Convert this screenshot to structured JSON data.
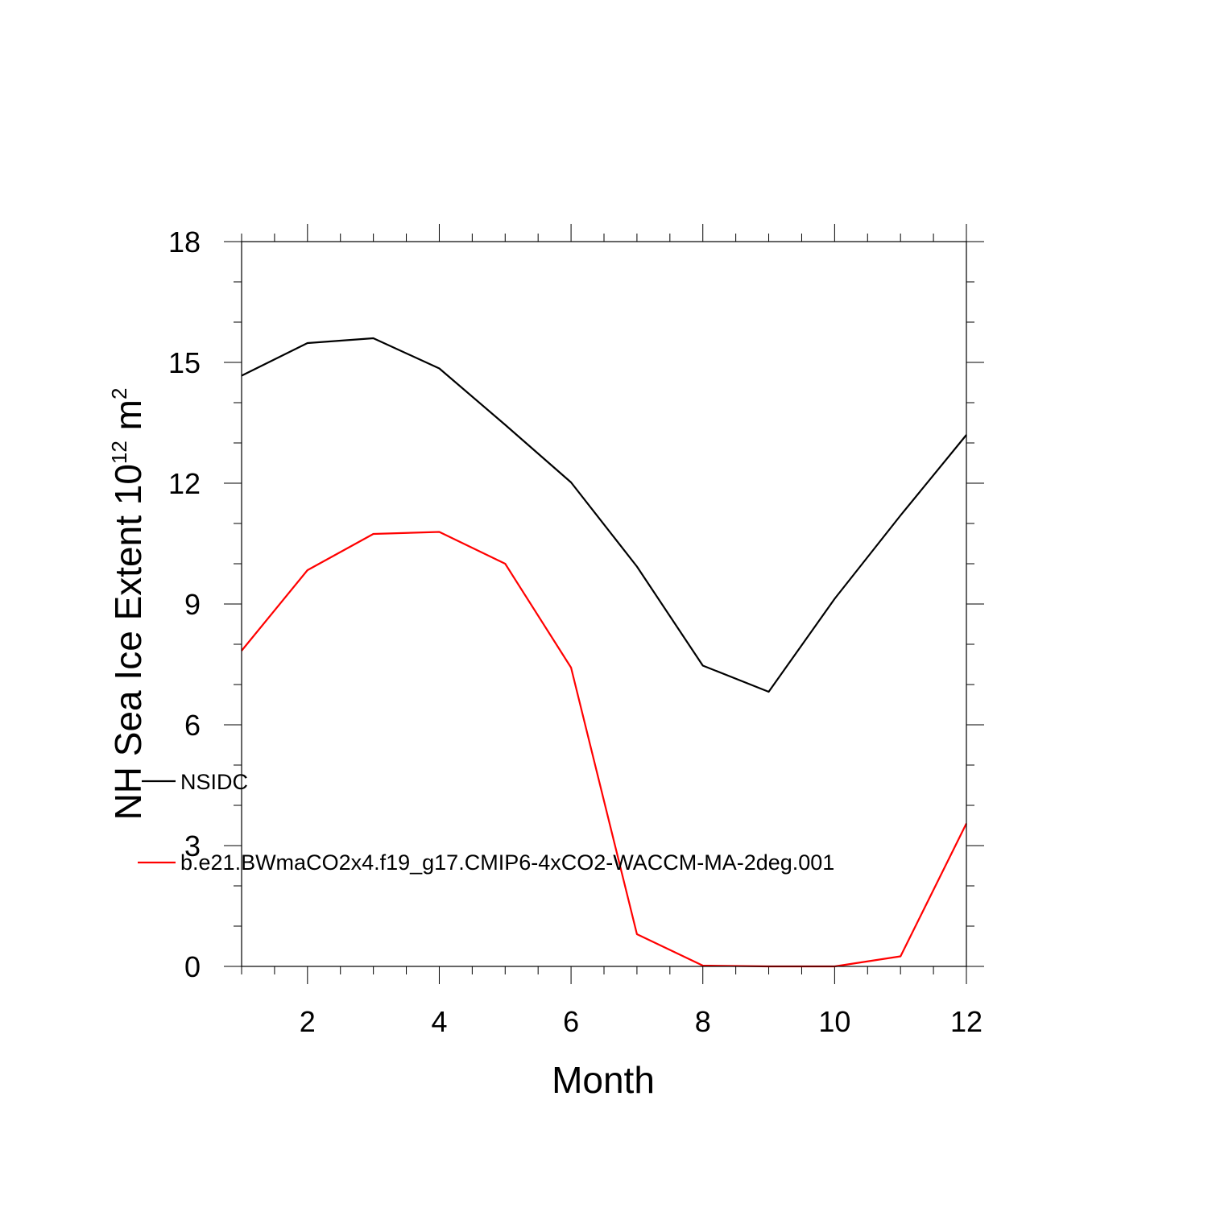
{
  "chart_data": {
    "type": "line",
    "xlabel": "Month",
    "ylabel": {
      "prefix": "NH Sea Ice Extent 10",
      "exponent": "12",
      "unit": " m",
      "unit_exponent": "2"
    },
    "xlim": [
      1,
      12
    ],
    "ylim": [
      0,
      18
    ],
    "x_ticks": [
      2,
      4,
      6,
      8,
      10,
      12
    ],
    "y_ticks": [
      0,
      3,
      6,
      9,
      12,
      15,
      18
    ],
    "grid": false,
    "legend_position": "inside-left",
    "x": [
      1,
      2,
      3,
      4,
      5,
      6,
      7,
      8,
      9,
      10,
      11,
      12
    ],
    "series": [
      {
        "name": "NSIDC",
        "color": "#000000",
        "values": [
          14.67,
          15.48,
          15.6,
          14.85,
          13.45,
          12.02,
          9.93,
          7.47,
          6.82,
          9.13,
          11.2,
          13.2
        ]
      },
      {
        "name": "b.e21.BWmaCO2x4.f19_g17.CMIP6-4xCO2-WACCM-MA-2deg.001",
        "color": "#ff0000",
        "values": [
          7.84,
          9.84,
          10.74,
          10.79,
          10.0,
          7.42,
          0.8,
          0.02,
          0.0,
          0.0,
          0.25,
          3.55
        ]
      }
    ]
  }
}
